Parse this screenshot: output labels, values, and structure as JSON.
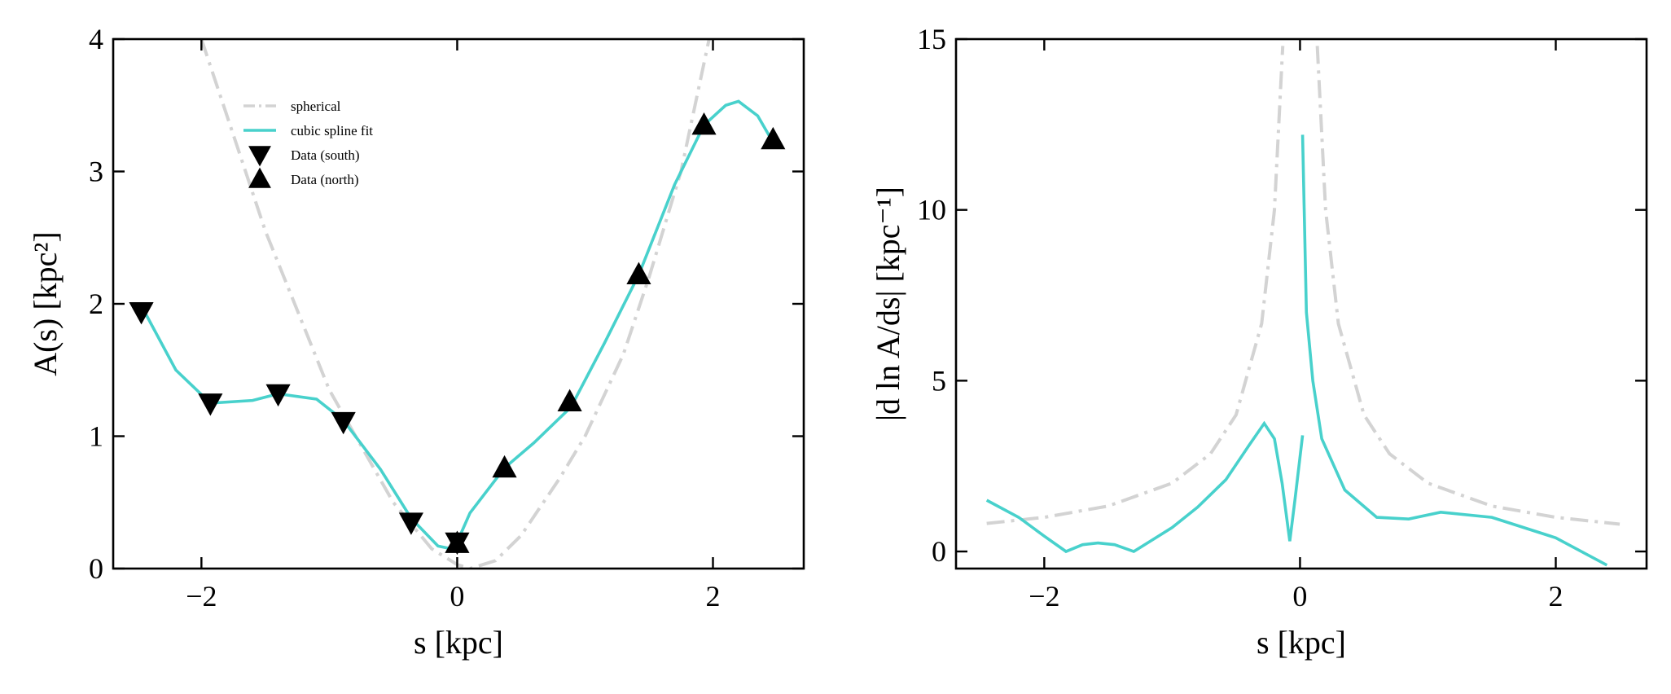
{
  "chart_data": [
    {
      "type": "line",
      "xlabel": "s [kpc]",
      "ylabel": "A(s) [kpc²]",
      "xlim": [
        -2.69,
        2.71
      ],
      "ylim": [
        0,
        4
      ],
      "xticks": [
        {
          "value": -2,
          "label": "−2"
        },
        0,
        2
      ],
      "yticks": [
        0,
        1,
        2,
        3,
        4
      ],
      "legend": "upper left",
      "series": [
        {
          "name": "spherical",
          "color": "#d3d3d3",
          "linestyle": "dashdot",
          "x": [
            -2.0,
            -1.5,
            -1.0,
            -0.5,
            -0.2,
            0.0,
            0.1,
            0.3,
            0.5,
            0.8,
            1.0,
            1.3,
            1.5,
            1.75,
            1.97
          ],
          "values": [
            4.0,
            2.55,
            1.35,
            0.5,
            0.15,
            0.03,
            0.0,
            0.06,
            0.25,
            0.68,
            1.0,
            1.62,
            2.2,
            3.0,
            4.0
          ]
        },
        {
          "name": "cubic spline fit",
          "color": "#48d1cc",
          "linestyle": "solid",
          "x": [
            -2.45,
            -2.2,
            -1.93,
            -1.6,
            -1.4,
            -1.1,
            -0.89,
            -0.6,
            -0.36,
            -0.15,
            -0.05,
            0.0,
            0.1,
            0.37,
            0.6,
            0.89,
            1.15,
            1.42,
            1.7,
            1.93,
            2.1,
            2.2,
            2.35,
            2.47
          ],
          "values": [
            1.95,
            1.5,
            1.25,
            1.27,
            1.32,
            1.28,
            1.12,
            0.75,
            0.38,
            0.17,
            0.15,
            0.2,
            0.42,
            0.76,
            0.95,
            1.22,
            1.7,
            2.22,
            2.9,
            3.35,
            3.5,
            3.53,
            3.42,
            3.22
          ]
        },
        {
          "name": "Data (south)",
          "color": "#000000",
          "marker": "down",
          "x": [
            -2.47,
            -1.93,
            -1.4,
            -0.89,
            -0.36,
            0.0
          ],
          "values": [
            1.94,
            1.25,
            1.32,
            1.11,
            0.35,
            0.2
          ]
        },
        {
          "name": "Data (north)",
          "color": "#000000",
          "marker": "up",
          "x": [
            0.0,
            0.37,
            0.88,
            1.42,
            1.93,
            2.47
          ],
          "values": [
            0.19,
            0.76,
            1.26,
            2.22,
            3.35,
            3.24
          ]
        }
      ]
    },
    {
      "type": "line",
      "xlabel": "s [kpc]",
      "ylabel": "|d ln A/ds| [kpc⁻¹]",
      "xlim": [
        -2.69,
        2.71
      ],
      "ylim": [
        -0.5,
        15
      ],
      "xticks": [
        {
          "value": -2,
          "label": "−2"
        },
        0,
        2
      ],
      "yticks": [
        0,
        5,
        10,
        15
      ],
      "series": [
        {
          "color": "#d3d3d3",
          "linestyle": "dashdot",
          "x": [
            -2.45,
            -2.0,
            -1.5,
            -1.0,
            -0.7,
            -0.5,
            -0.3,
            -0.2,
            -0.135,
            0.0,
            0.135,
            0.2,
            0.3,
            0.5,
            0.7,
            1.0,
            1.5,
            2.0,
            2.5
          ],
          "values": [
            0.82,
            1.0,
            1.33,
            2.0,
            2.86,
            4.0,
            6.67,
            10.0,
            14.8,
            null,
            14.8,
            10.0,
            6.67,
            4.0,
            2.86,
            2.0,
            1.33,
            1.0,
            0.8
          ]
        },
        {
          "color": "#48d1cc",
          "linestyle": "solid",
          "x": [
            -2.45,
            -2.2,
            -2.0,
            -1.83,
            -1.7,
            -1.58,
            -1.45,
            -1.3,
            -1.15,
            -1.0,
            -0.8,
            -0.58,
            -0.4,
            -0.28,
            -0.2,
            -0.14,
            -0.08,
            -0.04,
            0.02,
            0.02,
            0.02,
            0.05,
            0.1,
            0.17,
            0.35,
            0.6,
            0.85,
            1.1,
            1.5,
            2.0,
            2.4
          ],
          "values": [
            1.5,
            1.0,
            0.45,
            0.0,
            0.2,
            0.25,
            0.2,
            0.0,
            0.35,
            0.7,
            1.3,
            2.1,
            3.1,
            3.75,
            3.3,
            2.0,
            0.3,
            1.5,
            3.4,
            null,
            12.2,
            7.0,
            5.0,
            3.3,
            1.8,
            1.0,
            0.95,
            1.15,
            1.0,
            0.4,
            -0.4
          ]
        }
      ]
    }
  ]
}
